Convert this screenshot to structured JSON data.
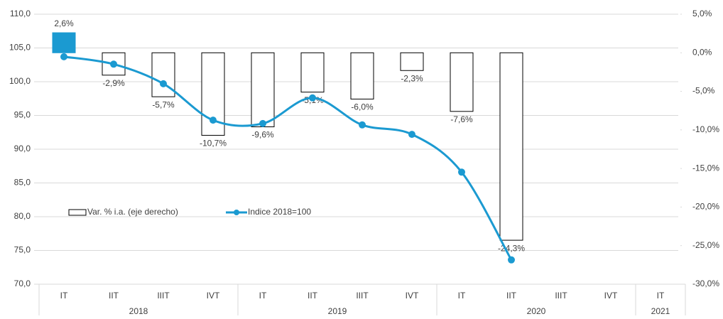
{
  "chart_data": {
    "type": "bar-line",
    "categories": [
      "IT",
      "IIT",
      "IIIT",
      "IVT",
      "IT",
      "IIT",
      "IIIT",
      "IVT",
      "IT",
      "IIT",
      "IIIT",
      "IVT",
      "IT"
    ],
    "groups": [
      {
        "label": "2018",
        "span": 4
      },
      {
        "label": "2019",
        "span": 4
      },
      {
        "label": "2020",
        "span": 4
      },
      {
        "label": "2021",
        "span": 1
      }
    ],
    "series": [
      {
        "name": "Var. % i.a. (eje derecho)",
        "type": "bar",
        "axis": "y2",
        "color": "#ffffff",
        "positive_color": "#1b9ad1",
        "values": [
          2.6,
          -2.9,
          -5.7,
          -10.7,
          -9.6,
          -5.1,
          -6.0,
          -2.3,
          -7.6,
          -24.3,
          null,
          null,
          null
        ],
        "value_labels": [
          "2,6%",
          "-2,9%",
          "-5,7%",
          "-10,7%",
          "-9,6%",
          "-5,1%",
          "-6,0%",
          "-2,3%",
          "-7,6%",
          "-24,3%",
          null,
          null,
          null
        ]
      },
      {
        "name": "Indice 2018=100",
        "type": "line",
        "color": "#1b9ad1",
        "values": [
          103.7,
          102.6,
          99.7,
          94.3,
          93.8,
          97.6,
          93.6,
          92.2,
          86.6,
          73.6,
          null,
          null,
          null
        ]
      }
    ],
    "ylim": [
      70,
      110
    ],
    "yticks": [
      {
        "value": 70,
        "label": "70,0"
      },
      {
        "value": 75,
        "label": "75,0"
      },
      {
        "value": 80,
        "label": "80,0"
      },
      {
        "value": 85,
        "label": "85,0"
      },
      {
        "value": 90,
        "label": "90,0"
      },
      {
        "value": 95,
        "label": "95,0"
      },
      {
        "value": 100,
        "label": "100,0"
      },
      {
        "value": 105,
        "label": "105,0"
      },
      {
        "value": 110,
        "label": "110,0"
      }
    ],
    "y2lim": [
      -30,
      5
    ],
    "y2ticks": [
      {
        "value": -30,
        "label": "-30,0%"
      },
      {
        "value": -25,
        "label": "-25,0%"
      },
      {
        "value": -20,
        "label": "-20,0%"
      },
      {
        "value": -15,
        "label": "-15,0%"
      },
      {
        "value": -10,
        "label": "-10,0%"
      },
      {
        "value": -5,
        "label": "-5,0%"
      },
      {
        "value": 0,
        "label": "0,0%"
      },
      {
        "value": 5,
        "label": "5,0%"
      }
    ],
    "grid": true
  }
}
